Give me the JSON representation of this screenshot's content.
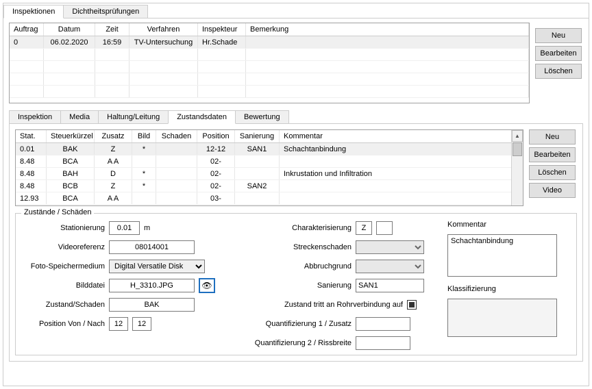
{
  "topTabs": [
    "Inspektionen",
    "Dichtheitsprüfungen"
  ],
  "topGrid": {
    "headers": [
      "Auftrag",
      "Datum",
      "Zeit",
      "Verfahren",
      "Inspekteur",
      "Bemerkung"
    ],
    "rows": [
      {
        "auftrag": "0",
        "datum": "06.02.2020",
        "zeit": "16:59",
        "verfahren": "TV-Untersuchung",
        "inspekteur": "Hr.Schade",
        "bemerkung": ""
      }
    ]
  },
  "topButtons": [
    "Neu",
    "Bearbeiten",
    "Löschen"
  ],
  "subTabs": [
    "Inspektion",
    "Media",
    "Haltung/Leitung",
    "Zustandsdaten",
    "Bewertung"
  ],
  "subActive": 3,
  "subGrid": {
    "headers": [
      "Stat.",
      "Steuerkürzel",
      "Zusatz",
      "Bild",
      "Schaden",
      "Position",
      "Sanierung",
      "Kommentar"
    ],
    "rows": [
      {
        "stat": "0.01",
        "steuer": "BAK",
        "zusatz": "Z",
        "bild": "*",
        "schaden": "",
        "pos": "12-12",
        "san": "SAN1",
        "komm": "Schachtanbindung"
      },
      {
        "stat": "8.48",
        "steuer": "BCA",
        "zusatz": "A A",
        "bild": "",
        "schaden": "",
        "pos": "02-",
        "san": "",
        "komm": ""
      },
      {
        "stat": "8.48",
        "steuer": "BAH",
        "zusatz": "D",
        "bild": "*",
        "schaden": "",
        "pos": "02-",
        "san": "",
        "komm": "Inkrustation und Infiltration"
      },
      {
        "stat": "8.48",
        "steuer": "BCB",
        "zusatz": "Z",
        "bild": "*",
        "schaden": "",
        "pos": "02-",
        "san": "SAN2",
        "komm": ""
      },
      {
        "stat": "12.93",
        "steuer": "BCA",
        "zusatz": "A A",
        "bild": "",
        "schaden": "",
        "pos": "03-",
        "san": "",
        "komm": ""
      }
    ]
  },
  "subButtons": [
    "Neu",
    "Bearbeiten",
    "Löschen",
    "Video"
  ],
  "fieldset": {
    "legend": "Zustände / Schäden",
    "labels": {
      "stationierung": "Stationierung",
      "stationierung_unit": "m",
      "videoreferenz": "Videoreferenz",
      "foto": "Foto-Speichermedium",
      "bilddatei": "Bilddatei",
      "zustand": "Zustand/Schaden",
      "position": "Position Von / Nach",
      "charakterisierung": "Charakterisierung",
      "streckenschaden": "Streckenschaden",
      "abbruchgrund": "Abbruchgrund",
      "sanierung": "Sanierung",
      "rohrverbindung": "Zustand tritt an Rohrverbindung auf",
      "quant1": "Quantifizierung 1 / Zusatz",
      "quant2": "Quantifizierung 2 / Rissbreite",
      "kommentar": "Kommentar",
      "klassifizierung": "Klassifizierung"
    },
    "values": {
      "stationierung": "0.01",
      "videoreferenz": "08014001",
      "foto": "Digital Versatile Disk",
      "bilddatei": "H_3310.JPG",
      "zustand": "BAK",
      "posVon": "12",
      "posNach": "12",
      "char1": "Z",
      "char2": "",
      "sanierung": "SAN1",
      "quant1": "",
      "quant2": "",
      "kommentar": "Schachtanbindung",
      "klassifizierung": ""
    }
  }
}
